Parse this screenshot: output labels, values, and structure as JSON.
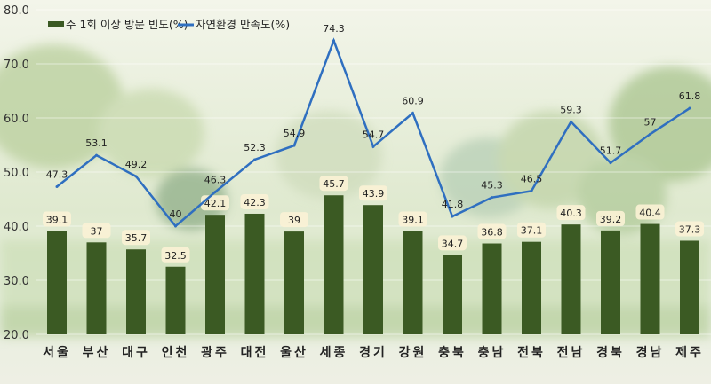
{
  "chart_data": {
    "type": "bar+line",
    "categories": [
      "서울",
      "부산",
      "대구",
      "인천",
      "광주",
      "대전",
      "울산",
      "세종",
      "경기",
      "강원",
      "충북",
      "충남",
      "전북",
      "전남",
      "경북",
      "경남",
      "제주"
    ],
    "series": [
      {
        "name": "주 1회 이상 방문 빈도(%)",
        "type": "bar",
        "color": "#3b5a23",
        "values": [
          39.1,
          37.0,
          35.7,
          32.5,
          42.1,
          42.3,
          39.0,
          45.7,
          43.9,
          39.1,
          34.7,
          36.8,
          37.1,
          40.3,
          39.2,
          40.4,
          37.3
        ]
      },
      {
        "name": "자연환경 만족도(%)",
        "type": "line",
        "color": "#2f6fc0",
        "values": [
          47.3,
          53.1,
          49.2,
          40.0,
          46.3,
          52.3,
          54.9,
          74.3,
          54.7,
          60.9,
          41.8,
          45.3,
          46.5,
          59.3,
          51.7,
          57.0,
          61.8
        ]
      }
    ],
    "ylim": [
      20,
      80
    ],
    "yticks": [
      "20.0",
      "30.0",
      "40.0",
      "50.0",
      "60.0",
      "70.0",
      "80.0"
    ],
    "legend": "top-left",
    "grid": true
  }
}
